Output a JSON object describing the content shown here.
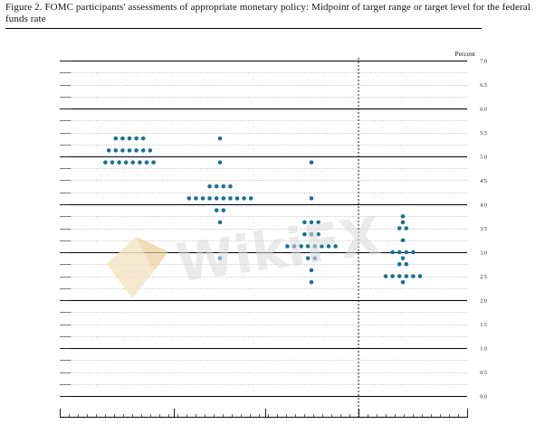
{
  "caption": "Figure 2. FOMC participants' assessments of appropriate monetary policy: Midpoint of target range or target level for the federal funds rate",
  "watermark_text": "WikiFX",
  "colors": {
    "dot": "#1a6f95",
    "major_line": "#000000",
    "minor_line": "#8a8a8a",
    "divider": "#000000",
    "watermark": "#d8d8d8",
    "watermark_logo": "#f3e4c5"
  },
  "chart_data": {
    "type": "scatter",
    "title": "",
    "ylabel": "Percent",
    "ylim": [
      0,
      7.0
    ],
    "y_ticks": [
      "7.0",
      "6.5",
      "6.0",
      "5.5",
      "5.0",
      "4.5",
      "4.0",
      "3.5",
      "3.0",
      "2.5",
      "2.0",
      "1.5",
      "1.0",
      "0.5",
      "0.0"
    ],
    "major_y_values": [
      7.0,
      6.0,
      5.0,
      4.0,
      3.0,
      2.0,
      1.0,
      0.0
    ],
    "dashed_divider_after_group": 3,
    "groups": [
      {
        "name": "",
        "rows": [
          {
            "y": 5.375,
            "count": 5
          },
          {
            "y": 5.125,
            "count": 7
          },
          {
            "y": 4.875,
            "count": 8
          }
        ]
      },
      {
        "name": "",
        "rows": [
          {
            "y": 5.375,
            "count": 1
          },
          {
            "y": 4.875,
            "count": 1
          },
          {
            "y": 4.375,
            "count": 4
          },
          {
            "y": 4.125,
            "count": 10
          },
          {
            "y": 3.875,
            "count": 2
          },
          {
            "y": 3.625,
            "count": 1
          },
          {
            "y": 2.875,
            "count": 1
          }
        ]
      },
      {
        "name": "",
        "rows": [
          {
            "y": 4.875,
            "count": 1
          },
          {
            "y": 4.125,
            "count": 1
          },
          {
            "y": 3.625,
            "count": 3
          },
          {
            "y": 3.375,
            "count": 3
          },
          {
            "y": 3.125,
            "count": 8
          },
          {
            "y": 2.875,
            "count": 2
          },
          {
            "y": 2.625,
            "count": 1
          },
          {
            "y": 2.375,
            "count": 1
          }
        ]
      },
      {
        "name": "",
        "rows": [
          {
            "y": 3.75,
            "count": 1
          },
          {
            "y": 3.625,
            "count": 1
          },
          {
            "y": 3.5,
            "count": 2
          },
          {
            "y": 3.25,
            "count": 1
          },
          {
            "y": 3.0,
            "count": 4
          },
          {
            "y": 2.875,
            "count": 1
          },
          {
            "y": 2.75,
            "count": 2
          },
          {
            "y": 2.5,
            "count": 6
          },
          {
            "y": 2.375,
            "count": 1
          }
        ]
      }
    ]
  }
}
